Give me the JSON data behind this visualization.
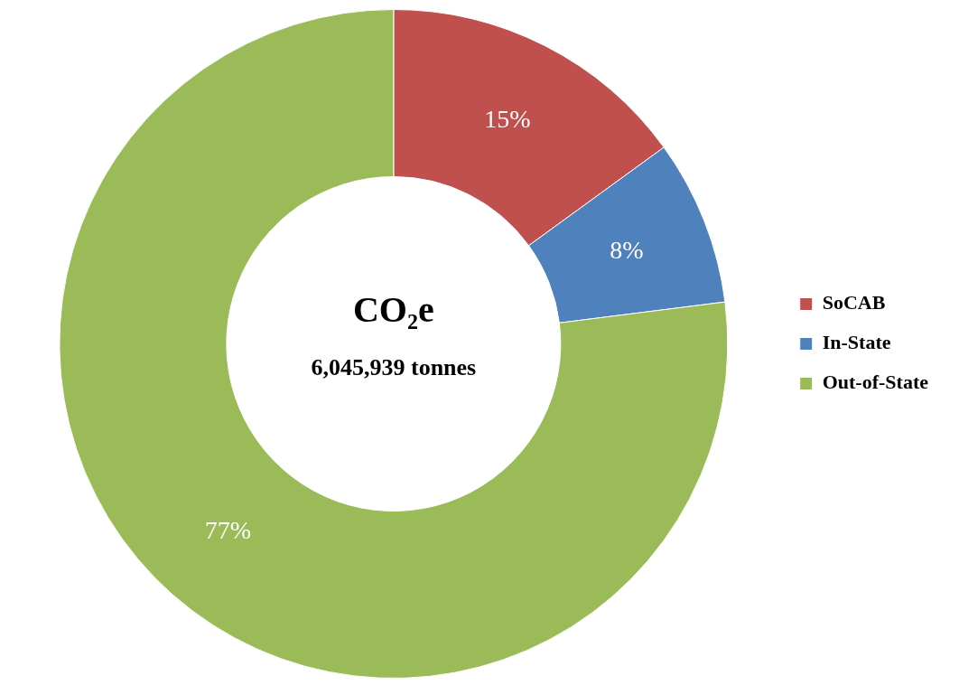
{
  "chart_data": {
    "type": "donut",
    "title": "CO₂e",
    "subtitle": "6,045,939 tonnes",
    "categories": [
      "SoCAB",
      "In-State",
      "Out-of-State"
    ],
    "values": [
      15,
      8,
      77
    ],
    "colors": [
      "#c0504d",
      "#4f81bd",
      "#9bbb59"
    ],
    "value_labels": [
      "15%",
      "8%",
      "77%"
    ],
    "legend": "right"
  }
}
